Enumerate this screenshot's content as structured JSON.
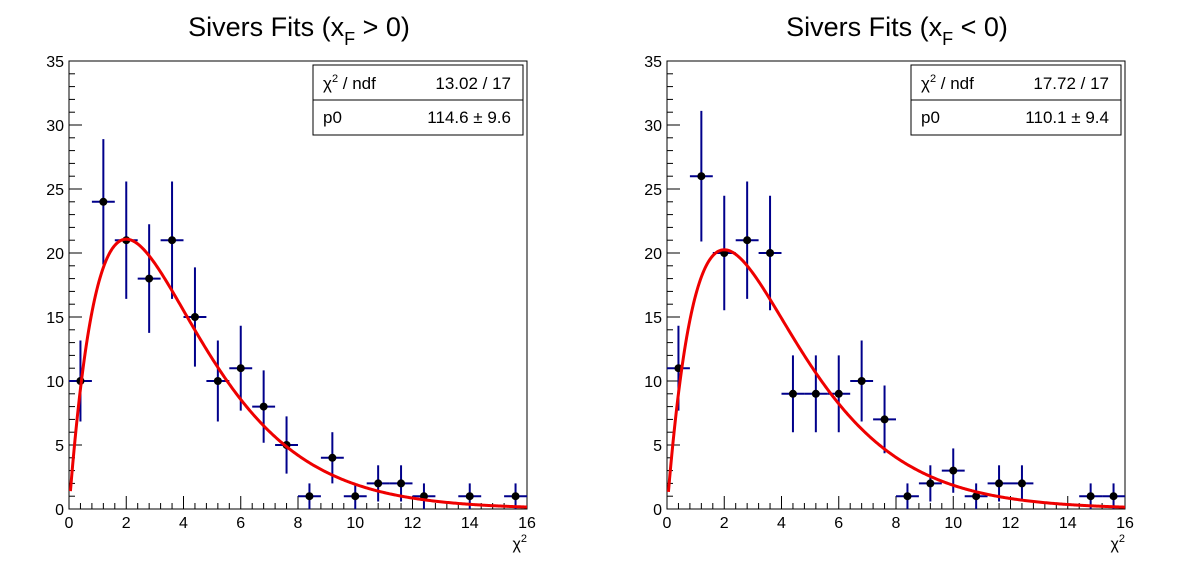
{
  "chart_data": [
    {
      "type": "scatter",
      "title": "Sivers Fits (x",
      "title_sub": "F",
      "title_tail": " > 0)",
      "xlabel": "χ",
      "xlabel_sup": "2",
      "xlim": [
        0,
        16
      ],
      "ylim": [
        0,
        35
      ],
      "xticks": [
        0,
        2,
        4,
        6,
        8,
        10,
        12,
        14,
        16
      ],
      "yticks": [
        0,
        5,
        10,
        15,
        20,
        25,
        30,
        35
      ],
      "bin_width": 0.8,
      "series": [
        {
          "x": [
            0.4,
            1.2,
            2.0,
            2.8,
            3.6,
            4.4,
            5.2,
            6.0,
            6.8,
            7.6,
            8.4,
            9.2,
            10.0,
            10.8,
            11.6,
            12.4,
            14.0,
            15.6
          ],
          "y": [
            10,
            24,
            21,
            18,
            21,
            15,
            10,
            11,
            8,
            5,
            1,
            4,
            1,
            2,
            2,
            1,
            1,
            1
          ]
        }
      ],
      "fit": {
        "color": "#ee0000",
        "p0": 114.6
      },
      "stats": {
        "row1_label": "χ",
        "row1_label_sup": "2",
        "row1_label_tail": " / ndf",
        "row1_value": "13.02 / 17",
        "row2_label": "p0",
        "row2_value": "114.6 ± 9.6"
      }
    },
    {
      "type": "scatter",
      "title": "Sivers Fits (x",
      "title_sub": "F",
      "title_tail": " < 0)",
      "xlabel": "χ",
      "xlabel_sup": "2",
      "xlim": [
        0,
        16
      ],
      "ylim": [
        0,
        35
      ],
      "xticks": [
        0,
        2,
        4,
        6,
        8,
        10,
        12,
        14,
        16
      ],
      "yticks": [
        0,
        5,
        10,
        15,
        20,
        25,
        30,
        35
      ],
      "bin_width": 0.8,
      "series": [
        {
          "x": [
            0.4,
            1.2,
            2.0,
            2.8,
            3.6,
            4.4,
            5.2,
            6.0,
            6.8,
            7.6,
            8.4,
            9.2,
            10.0,
            10.8,
            11.6,
            12.4,
            14.8,
            15.6
          ],
          "y": [
            11,
            26,
            20,
            21,
            20,
            9,
            9,
            9,
            10,
            7,
            1,
            2,
            3,
            1,
            2,
            2,
            1,
            1
          ]
        }
      ],
      "fit": {
        "color": "#ee0000",
        "p0": 110.1
      },
      "stats": {
        "row1_label": "χ",
        "row1_label_sup": "2",
        "row1_label_tail": " / ndf",
        "row1_value": "17.72 / 17",
        "row2_label": "p0",
        "row2_value": "110.1 ± 9.4"
      }
    }
  ]
}
